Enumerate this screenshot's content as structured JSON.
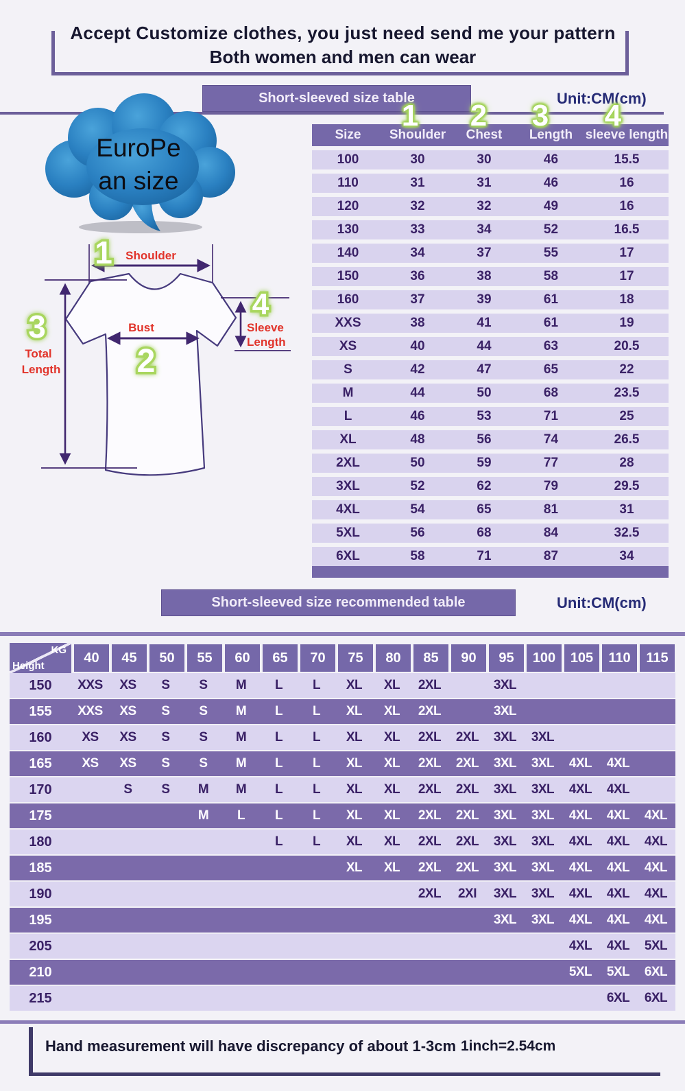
{
  "header": {
    "line1": "Accept Customize clothes, you just need send me your pattern",
    "line2": "Both women and men can wear"
  },
  "banners": {
    "size_table": "Short-sleeved size  table",
    "recommend_table": "Short-sleeved size recommended table",
    "unit": "Unit:CM(cm)"
  },
  "cloud": {
    "line1": "EuroPe",
    "line2": "an  size"
  },
  "diagram": {
    "numbers": {
      "n1": "1",
      "n2": "2",
      "n3": "3",
      "n4": "4"
    },
    "labels": {
      "shoulder": "Shoulder",
      "bust": "Bust",
      "total1": "Total",
      "total2": "Length",
      "sleeve1": "Sleeve",
      "sleeve2": "Length"
    }
  },
  "size_table": {
    "columns": [
      "Size",
      "Shoulder",
      "Chest",
      "Length",
      "sleeve length"
    ],
    "rows": [
      [
        "100",
        "30",
        "30",
        "46",
        "15.5"
      ],
      [
        "110",
        "31",
        "31",
        "46",
        "16"
      ],
      [
        "120",
        "32",
        "32",
        "49",
        "16"
      ],
      [
        "130",
        "33",
        "34",
        "52",
        "16.5"
      ],
      [
        "140",
        "34",
        "37",
        "55",
        "17"
      ],
      [
        "150",
        "36",
        "38",
        "58",
        "17"
      ],
      [
        "160",
        "37",
        "39",
        "61",
        "18"
      ],
      [
        "XXS",
        "38",
        "41",
        "61",
        "19"
      ],
      [
        "XS",
        "40",
        "44",
        "63",
        "20.5"
      ],
      [
        "S",
        "42",
        "47",
        "65",
        "22"
      ],
      [
        "M",
        "44",
        "50",
        "68",
        "23.5"
      ],
      [
        "L",
        "46",
        "53",
        "71",
        "25"
      ],
      [
        "XL",
        "48",
        "56",
        "74",
        "26.5"
      ],
      [
        "2XL",
        "50",
        "59",
        "77",
        "28"
      ],
      [
        "3XL",
        "52",
        "62",
        "79",
        "29.5"
      ],
      [
        "4XL",
        "54",
        "65",
        "81",
        "31"
      ],
      [
        "5XL",
        "56",
        "68",
        "84",
        "32.5"
      ],
      [
        "6XL",
        "58",
        "71",
        "87",
        "34"
      ]
    ]
  },
  "recommend_table": {
    "corner": {
      "top": "KG",
      "bottom": "Height"
    },
    "weights": [
      "40",
      "45",
      "50",
      "55",
      "60",
      "65",
      "70",
      "75",
      "80",
      "85",
      "90",
      "95",
      "100",
      "105",
      "110",
      "115"
    ],
    "rows": [
      {
        "height": "150",
        "values": [
          "XXS",
          "XS",
          "S",
          "S",
          "M",
          "L",
          "L",
          "XL",
          "XL",
          "2XL",
          "",
          "3XL",
          "",
          "",
          "",
          ""
        ]
      },
      {
        "height": "155",
        "values": [
          "XXS",
          "XS",
          "S",
          "S",
          "M",
          "L",
          "L",
          "XL",
          "XL",
          "2XL",
          "",
          "3XL",
          "",
          "",
          "",
          ""
        ]
      },
      {
        "height": "160",
        "values": [
          "XS",
          "XS",
          "S",
          "S",
          "M",
          "L",
          "L",
          "XL",
          "XL",
          "2XL",
          "2XL",
          "3XL",
          "3XL",
          "",
          "",
          ""
        ]
      },
      {
        "height": "165",
        "values": [
          "XS",
          "XS",
          "S",
          "S",
          "M",
          "L",
          "L",
          "XL",
          "XL",
          "2XL",
          "2XL",
          "3XL",
          "3XL",
          "4XL",
          "4XL",
          ""
        ]
      },
      {
        "height": "170",
        "values": [
          "",
          "S",
          "S",
          "M",
          "M",
          "L",
          "L",
          "XL",
          "XL",
          "2XL",
          "2XL",
          "3XL",
          "3XL",
          "4XL",
          "4XL",
          ""
        ]
      },
      {
        "height": "175",
        "values": [
          "",
          "",
          "",
          "M",
          "L",
          "L",
          "L",
          "XL",
          "XL",
          "2XL",
          "2XL",
          "3XL",
          "3XL",
          "4XL",
          "4XL",
          "4XL"
        ]
      },
      {
        "height": "180",
        "values": [
          "",
          "",
          "",
          "",
          "",
          "L",
          "L",
          "XL",
          "XL",
          "2XL",
          "2XL",
          "3XL",
          "3XL",
          "4XL",
          "4XL",
          "4XL"
        ]
      },
      {
        "height": "185",
        "values": [
          "",
          "",
          "",
          "",
          "",
          "",
          "",
          "XL",
          "XL",
          "2XL",
          "2XL",
          "3XL",
          "3XL",
          "4XL",
          "4XL",
          "4XL"
        ]
      },
      {
        "height": "190",
        "values": [
          "",
          "",
          "",
          "",
          "",
          "",
          "",
          "",
          "",
          "2XL",
          "2XI",
          "3XL",
          "3XL",
          "4XL",
          "4XL",
          "4XL"
        ]
      },
      {
        "height": "195",
        "values": [
          "",
          "",
          "",
          "",
          "",
          "",
          "",
          "",
          "",
          "",
          "",
          "3XL",
          "3XL",
          "4XL",
          "4XL",
          "4XL"
        ]
      },
      {
        "height": "205",
        "values": [
          "",
          "",
          "",
          "",
          "",
          "",
          "",
          "",
          "",
          "",
          "",
          "",
          "",
          "4XL",
          "4XL",
          "5XL"
        ]
      },
      {
        "height": "210",
        "values": [
          "",
          "",
          "",
          "",
          "",
          "",
          "",
          "",
          "",
          "",
          "",
          "",
          "",
          "5XL",
          "5XL",
          "6XL"
        ]
      },
      {
        "height": "215",
        "values": [
          "",
          "",
          "",
          "",
          "",
          "",
          "",
          "",
          "",
          "",
          "",
          "",
          "",
          "",
          "6XL",
          "6XL"
        ]
      }
    ]
  },
  "footer": {
    "note": "Hand measurement will have discrepancy of about  1-3cm",
    "conversion": "1inch=2.54cm"
  },
  "colors": {
    "banner_purple": "#7568a9",
    "row_light": "#dbd5f0",
    "row_dark": "#7b6aaa",
    "text_dark_purple": "#3a2166",
    "label_red": "#e1342b",
    "glow_green": "#a9d65f",
    "unit_navy": "#262b76",
    "cloud_blue": "#2a7fc0"
  }
}
